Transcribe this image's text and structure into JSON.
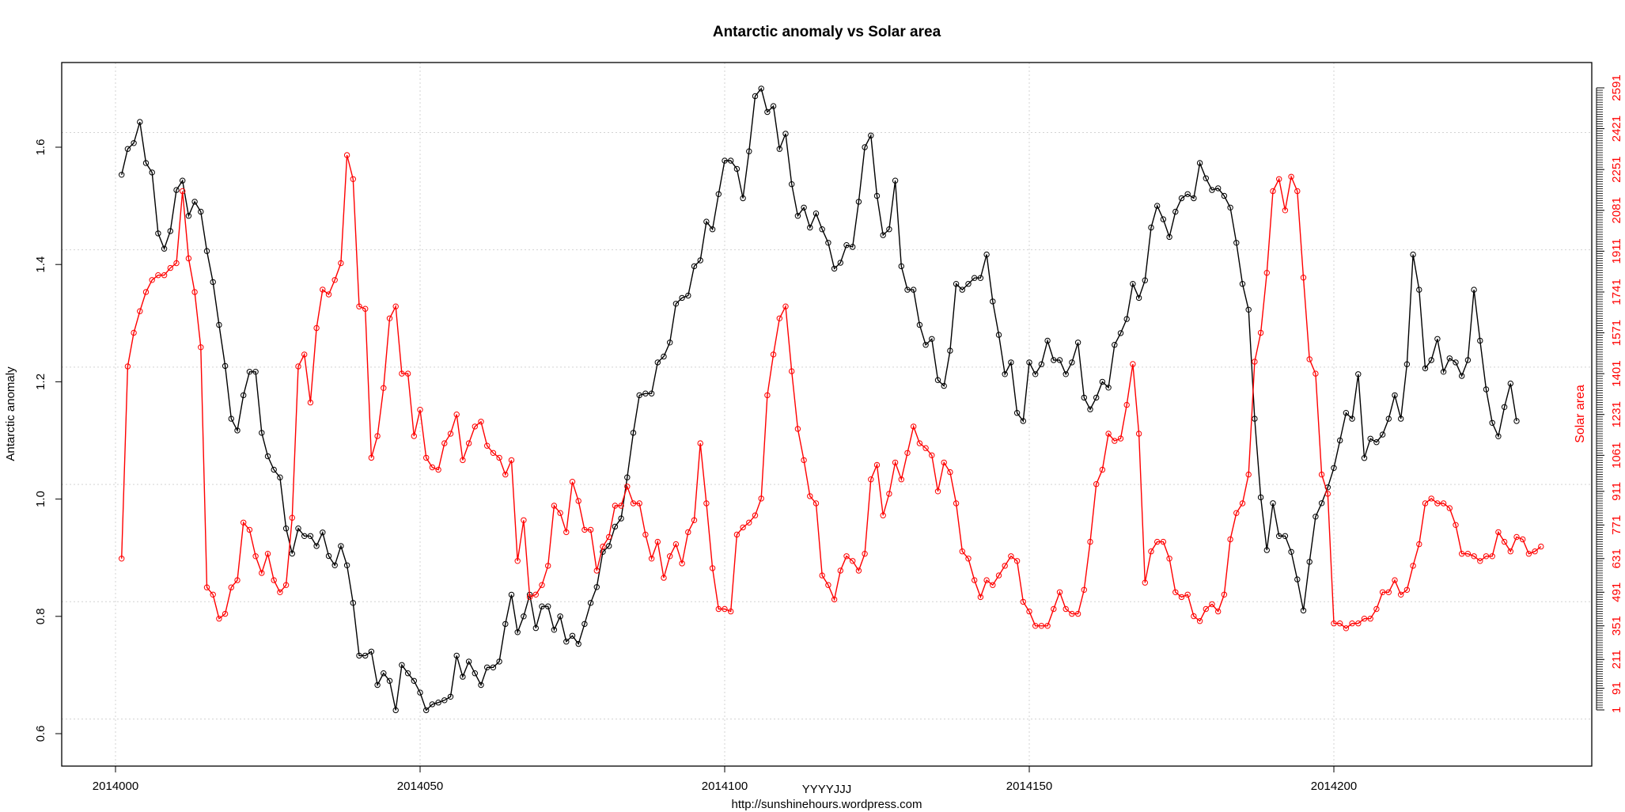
{
  "chart_data": {
    "type": "line",
    "title": "Antarctic anomaly  vs  Solar area",
    "xlabel": "YYYYJJJ",
    "ylabel": "Antarctic anomaly",
    "y2label": "Solar area",
    "source": "http://sunshinehours.wordpress.com",
    "xlim": [
      2013998,
      2014236
    ],
    "ylim": [
      0.6,
      1.74
    ],
    "y2lim": [
      1,
      2591
    ],
    "x_ticks": [
      2014000,
      2014050,
      2014100,
      2014150,
      2014200
    ],
    "y_ticks": [
      0.6,
      0.8,
      1.0,
      1.2,
      1.4,
      1.6
    ],
    "y2_ticks": [
      1,
      91,
      211,
      351,
      491,
      631,
      771,
      911,
      1061,
      1231,
      1401,
      1571,
      1741,
      1911,
      2081,
      2251,
      2421,
      2591
    ],
    "grid": true,
    "series": [
      {
        "axis": "left",
        "color": "#000000",
        "x_start": 2014001,
        "values": [
          1.553,
          1.597,
          1.607,
          1.643,
          1.573,
          1.557,
          1.453,
          1.427,
          1.457,
          1.527,
          1.543,
          1.483,
          1.507,
          1.49,
          1.423,
          1.37,
          1.297,
          1.227,
          1.137,
          1.117,
          1.177,
          1.217,
          1.217,
          1.113,
          1.073,
          1.05,
          1.037,
          0.95,
          0.907,
          0.95,
          0.937,
          0.937,
          0.92,
          0.943,
          0.903,
          0.887,
          0.92,
          0.887,
          0.823,
          0.733,
          0.733,
          0.74,
          0.683,
          0.703,
          0.69,
          0.64,
          0.717,
          0.703,
          0.69,
          0.67,
          0.64,
          0.65,
          0.653,
          0.657,
          0.663,
          0.733,
          0.697,
          0.723,
          0.703,
          0.683,
          0.713,
          0.713,
          0.723,
          0.787,
          0.837,
          0.773,
          0.8,
          0.837,
          0.78,
          0.817,
          0.817,
          0.777,
          0.8,
          0.757,
          0.767,
          0.753,
          0.787,
          0.823,
          0.85,
          0.91,
          0.92,
          0.953,
          0.967,
          1.037,
          1.113,
          1.177,
          1.18,
          1.18,
          1.233,
          1.243,
          1.267,
          1.333,
          1.343,
          1.347,
          1.397,
          1.407,
          1.473,
          1.46,
          1.52,
          1.577,
          1.577,
          1.563,
          1.513,
          1.593,
          1.687,
          1.7,
          1.66,
          1.67,
          1.597,
          1.623,
          1.537,
          1.483,
          1.497,
          1.463,
          1.487,
          1.46,
          1.437,
          1.393,
          1.403,
          1.433,
          1.43,
          1.507,
          1.6,
          1.62,
          1.517,
          1.45,
          1.46,
          1.543,
          1.397,
          1.357,
          1.357,
          1.297,
          1.263,
          1.273,
          1.203,
          1.193,
          1.253,
          1.367,
          1.357,
          1.367,
          1.377,
          1.377,
          1.417,
          1.337,
          1.28,
          1.213,
          1.233,
          1.147,
          1.133,
          1.233,
          1.213,
          1.23,
          1.27,
          1.237,
          1.237,
          1.213,
          1.233,
          1.267,
          1.173,
          1.153,
          1.173,
          1.2,
          1.19,
          1.263,
          1.283,
          1.307,
          1.367,
          1.343,
          1.373,
          1.463,
          1.5,
          1.477,
          1.447,
          1.49,
          1.513,
          1.52,
          1.513,
          1.573,
          1.547,
          1.527,
          1.53,
          1.517,
          1.497,
          1.437,
          1.367,
          1.323,
          1.137,
          1.003,
          0.913,
          0.993,
          0.937,
          0.937,
          0.91,
          0.863,
          0.81,
          0.893,
          0.97,
          0.993,
          1.02,
          1.053,
          1.1,
          1.147,
          1.137,
          1.213,
          1.07,
          1.103,
          1.097,
          1.11,
          1.137,
          1.177,
          1.137,
          1.23,
          1.417,
          1.357,
          1.223,
          1.237,
          1.273,
          1.217,
          1.24,
          1.233,
          1.21,
          1.237,
          1.357,
          1.27,
          1.187,
          1.13,
          1.107,
          1.157,
          1.197,
          1.133
        ]
      },
      {
        "axis": "right",
        "color": "#ff0000",
        "x_start": 2014001,
        "values": [
          631,
          1431,
          1571,
          1661,
          1741,
          1791,
          1811,
          1811,
          1841,
          1861,
          2161,
          1881,
          1741,
          1511,
          511,
          481,
          381,
          401,
          511,
          541,
          781,
          751,
          641,
          571,
          651,
          541,
          491,
          521,
          801,
          1431,
          1481,
          1281,
          1591,
          1751,
          1731,
          1791,
          1861,
          2311,
          2211,
          1681,
          1671,
          1051,
          1141,
          1341,
          1631,
          1681,
          1401,
          1401,
          1141,
          1251,
          1051,
          1011,
          1001,
          1111,
          1151,
          1231,
          1041,
          1111,
          1181,
          1201,
          1101,
          1071,
          1051,
          981,
          1041,
          621,
          791,
          471,
          481,
          521,
          601,
          851,
          821,
          741,
          951,
          871,
          751,
          751,
          581,
          681,
          721,
          851,
          851,
          931,
          861,
          861,
          731,
          631,
          701,
          551,
          641,
          691,
          611,
          741,
          791,
          1111,
          861,
          591,
          421,
          421,
          411,
          731,
          761,
          781,
          811,
          881,
          1311,
          1481,
          1631,
          1681,
          1411,
          1171,
          1041,
          891,
          861,
          561,
          521,
          461,
          581,
          641,
          621,
          581,
          651,
          961,
          1021,
          811,
          901,
          1031,
          961,
          1071,
          1181,
          1111,
          1091,
          1061,
          911,
          1031,
          991,
          861,
          661,
          631,
          541,
          471,
          541,
          521,
          561,
          601,
          641,
          621,
          451,
          411,
          351,
          351,
          351,
          421,
          491,
          421,
          401,
          401,
          501,
          701,
          941,
          1001,
          1151,
          1121,
          1131,
          1271,
          1441,
          1151,
          531,
          661,
          701,
          701,
          631,
          491,
          471,
          481,
          391,
          371,
          421,
          441,
          411,
          481,
          711,
          821,
          861,
          981,
          1451,
          1571,
          1821,
          2161,
          2211,
          2081,
          2221,
          2161,
          1801,
          1461,
          1401,
          981,
          901,
          361,
          361,
          341,
          361,
          361,
          381,
          381,
          421,
          491,
          491,
          541,
          481,
          501,
          601,
          691,
          861,
          881,
          861,
          861,
          841,
          771,
          651,
          651,
          641,
          621,
          641,
          641,
          741,
          701,
          661,
          721,
          711,
          651,
          661,
          681
        ]
      }
    ]
  }
}
